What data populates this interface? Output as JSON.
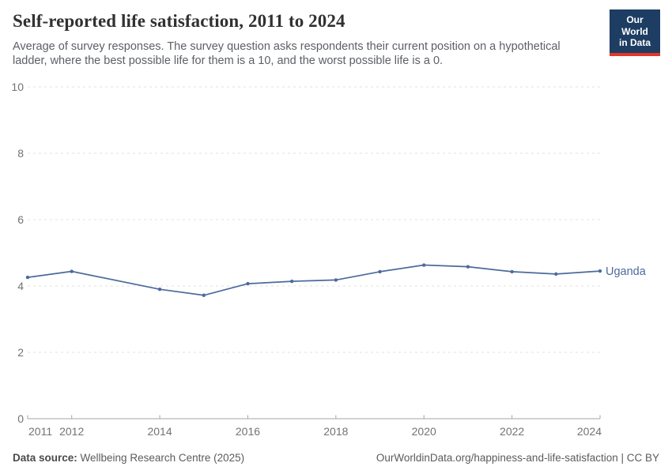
{
  "header": {
    "title": "Self-reported life satisfaction, 2011 to 2024",
    "subtitle": "Average of survey responses. The survey question asks respondents their current position on a hypothetical ladder, where the best possible life for them is a 10, and the worst possible life is a 0."
  },
  "logo": {
    "line1": "Our World",
    "line2": "in Data",
    "bg": "#1d3d63",
    "bar": "#e0362c"
  },
  "chart_data": {
    "type": "line",
    "title": "Self-reported life satisfaction, 2011 to 2024",
    "series": [
      {
        "name": "Uganda",
        "x": [
          2011,
          2012,
          2014,
          2015,
          2016,
          2017,
          2018,
          2019,
          2020,
          2021,
          2022,
          2023,
          2024
        ],
        "values": [
          4.26,
          4.44,
          3.9,
          3.72,
          4.07,
          4.14,
          4.18,
          4.43,
          4.63,
          4.58,
          4.43,
          4.36,
          4.45
        ],
        "color": "#4c6a9c"
      }
    ],
    "note": "no data for 2013; line drawn straight from 2012 to 2014",
    "x_ticks": [
      2011,
      2012,
      2014,
      2016,
      2018,
      2020,
      2022,
      2024
    ],
    "y_ticks": [
      0,
      2,
      4,
      6,
      8,
      10
    ],
    "xlim": [
      2011,
      2024
    ],
    "ylim": [
      0,
      10
    ],
    "xlabel": "",
    "ylabel": "",
    "grid": "horizontal dashed",
    "legend_position": "label at end of line"
  },
  "footer": {
    "source_label": "Data source:",
    "source_text": " Wellbeing Research Centre (2025)",
    "link": "OurWorldinData.org/happiness-and-life-satisfaction | CC BY"
  },
  "colors": {
    "accent": "#4c6a9c",
    "grid": "#e2e2e2",
    "axis": "#a5a5a5",
    "tick_label": "#737373",
    "title": "#313131",
    "subtitle": "#5c5f66",
    "footer": "#5b5b5b"
  }
}
